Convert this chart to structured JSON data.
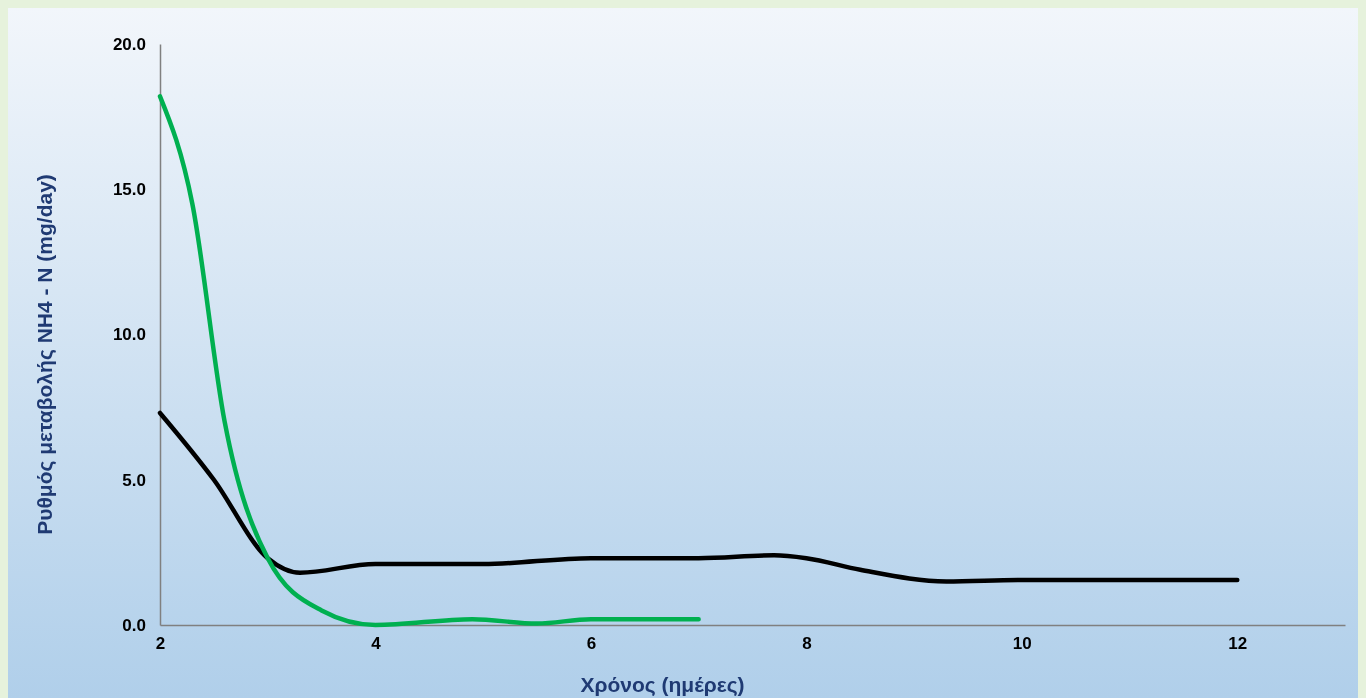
{
  "chart_data": {
    "type": "line",
    "xlabel": "Χρόνος (ημέρες)",
    "ylabel": "Ρυθμός μεταβολής NH4 - N (mg/day)",
    "xlim": [
      2,
      13
    ],
    "xticks": [
      2,
      4,
      6,
      8,
      10,
      12
    ],
    "ylim": [
      0,
      20
    ],
    "yticks": [
      {
        "value": 0,
        "label": "0.0"
      },
      {
        "value": 5,
        "label": "5.0"
      },
      {
        "value": 10,
        "label": "10.0"
      },
      {
        "value": 15,
        "label": "15.0"
      },
      {
        "value": 20,
        "label": "20.0"
      }
    ],
    "grid": false,
    "legend": false,
    "marker": "none",
    "line_style": "solid",
    "series": [
      {
        "color": "#000000",
        "x": [
          2,
          2.5,
          3,
          3.3,
          4,
          5,
          6,
          7,
          7.7,
          8,
          8.5,
          9.3,
          10,
          12
        ],
        "values": [
          7.3,
          5.0,
          2.3,
          1.8,
          2.1,
          2.1,
          2.3,
          2.3,
          2.4,
          2.3,
          1.9,
          1.5,
          1.55,
          1.55
        ]
      },
      {
        "color": "#00b050",
        "x": [
          2,
          2.3,
          2.6,
          3,
          3.5,
          4,
          4.9,
          5.5,
          6,
          7
        ],
        "values": [
          18.2,
          14.5,
          7.0,
          2.3,
          0.5,
          0.0,
          0.2,
          0.05,
          0.2,
          0.2
        ]
      }
    ]
  }
}
